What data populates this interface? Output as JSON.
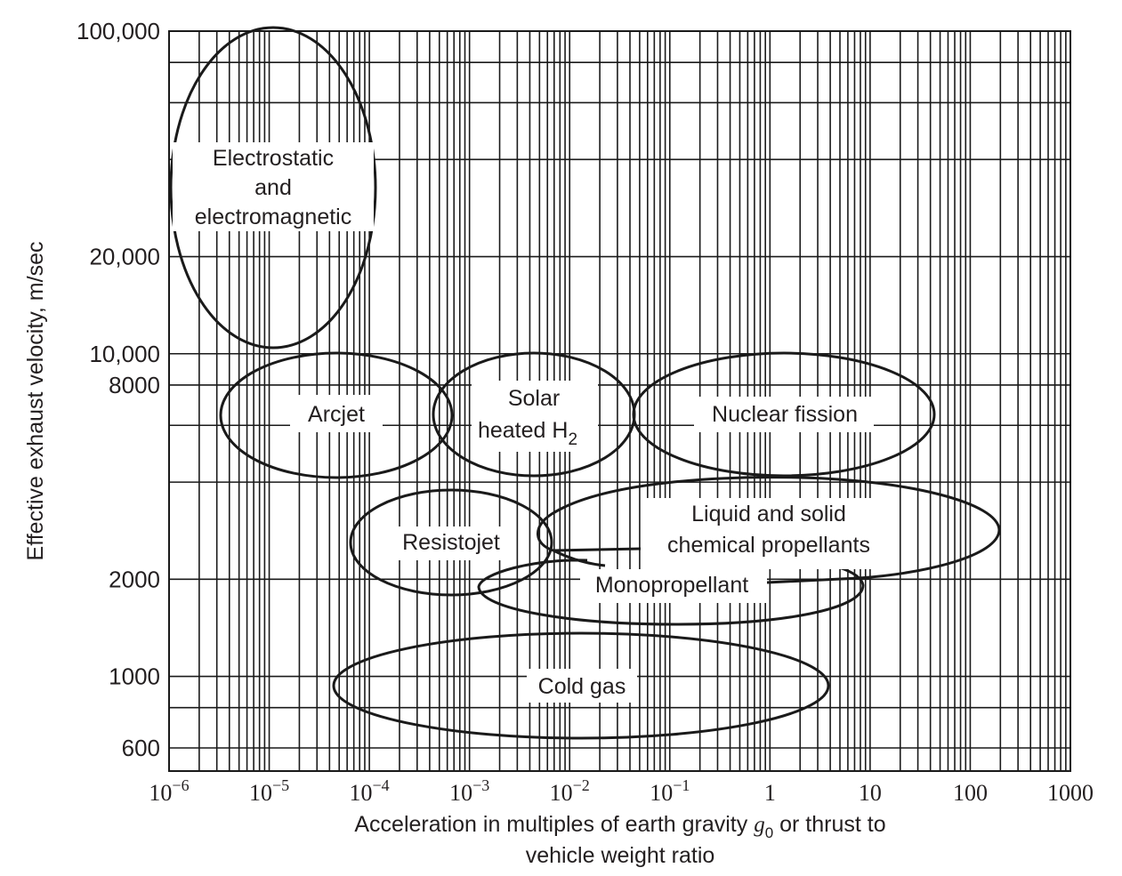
{
  "chart_data": {
    "type": "scatter",
    "subtype": "region-map (log-log)",
    "title": "",
    "xlabel": "Acceleration in multiples of earth gravity g0 or thrust to vehicle weight ratio",
    "xlabel_lines": [
      "Acceleration in multiples of earth gravity ",
      "g",
      "0",
      " or thrust to",
      "vehicle weight ratio"
    ],
    "ylabel": "Effective exhaust velocity, m/sec",
    "xscale": "log",
    "yscale": "log",
    "xlim": [
      1e-06,
      1000
    ],
    "ylim": [
      510,
      100000
    ],
    "grid": true,
    "legend": "none",
    "x_ticks": [
      {
        "value": 1e-06,
        "base": "10",
        "exp": "−6"
      },
      {
        "value": 1e-05,
        "base": "10",
        "exp": "−5"
      },
      {
        "value": 0.0001,
        "base": "10",
        "exp": "−4"
      },
      {
        "value": 0.001,
        "base": "10",
        "exp": "−3"
      },
      {
        "value": 0.01,
        "base": "10",
        "exp": "−2"
      },
      {
        "value": 0.1,
        "base": "10",
        "exp": "−1"
      },
      {
        "value": 1,
        "base": "1",
        "exp": ""
      },
      {
        "value": 10,
        "base": "10",
        "exp": ""
      },
      {
        "value": 100,
        "base": "100",
        "exp": ""
      },
      {
        "value": 1000,
        "base": "1000",
        "exp": ""
      }
    ],
    "y_ticks": [
      {
        "value": 100000,
        "label": "100,000"
      },
      {
        "value": 20000,
        "label": "20,000"
      },
      {
        "value": 10000,
        "label": "10,000"
      },
      {
        "value": 8000,
        "label": "8000"
      },
      {
        "value": 2000,
        "label": "2000"
      },
      {
        "value": 1000,
        "label": "1000"
      },
      {
        "value": 600,
        "label": "600"
      }
    ],
    "y_gridlines": [
      100000,
      80000,
      60000,
      40000,
      20000,
      10000,
      8000,
      6000,
      4000,
      2000,
      1000,
      800,
      600
    ],
    "regions": [
      {
        "name": "Electrostatic and electromagnetic",
        "label_lines": [
          "Electrostatic",
          "and",
          "electromagnetic"
        ],
        "x_range": [
          1e-06,
          8e-05
        ],
        "y_range": [
          10000,
          100000
        ],
        "center": {
          "x": 1e-05,
          "y": 31000
        }
      },
      {
        "name": "Arcjet",
        "label_lines": [
          "Arcjet"
        ],
        "x_range": [
          3e-06,
          0.0006
        ],
        "y_range": [
          4000,
          10000
        ],
        "center": {
          "x": 4e-05,
          "y": 6800
        }
      },
      {
        "name": "Solar heated H2",
        "label_lines": [
          "Solar",
          "heated H",
          "2"
        ],
        "x_range": [
          0.0005,
          0.05
        ],
        "y_range": [
          4000,
          10000
        ],
        "center": {
          "x": 0.004,
          "y": 6800
        }
      },
      {
        "name": "Nuclear fission",
        "label_lines": [
          "Nuclear fission"
        ],
        "x_range": [
          0.04,
          40
        ],
        "y_range": [
          4000,
          10000
        ],
        "center": {
          "x": 1.5,
          "y": 6800
        }
      },
      {
        "name": "Resistojet",
        "label_lines": [
          "Resistojet"
        ],
        "x_range": [
          2e-05,
          0.0025
        ],
        "y_range": [
          1400,
          4000
        ],
        "center": {
          "x": 0.0006,
          "y": 2500
        }
      },
      {
        "name": "Liquid and solid chemical propellants",
        "label_lines": [
          "Liquid and solid",
          "chemical propellants"
        ],
        "x_range": [
          0.0025,
          200
        ],
        "y_range": [
          1900,
          4200
        ],
        "center": {
          "x": 0.5,
          "y": 2900
        }
      },
      {
        "name": "Monopropellant",
        "label_lines": [
          "Monopropellant"
        ],
        "x_range": [
          0.0004,
          10
        ],
        "y_range": [
          1400,
          2400
        ],
        "center": {
          "x": 0.05,
          "y": 1900
        }
      },
      {
        "name": "Cold gas",
        "label_lines": [
          "Cold gas"
        ],
        "x_range": [
          4e-05,
          3
        ],
        "y_range": [
          650,
          1350
        ],
        "center": {
          "x": 0.015,
          "y": 900
        }
      }
    ]
  }
}
